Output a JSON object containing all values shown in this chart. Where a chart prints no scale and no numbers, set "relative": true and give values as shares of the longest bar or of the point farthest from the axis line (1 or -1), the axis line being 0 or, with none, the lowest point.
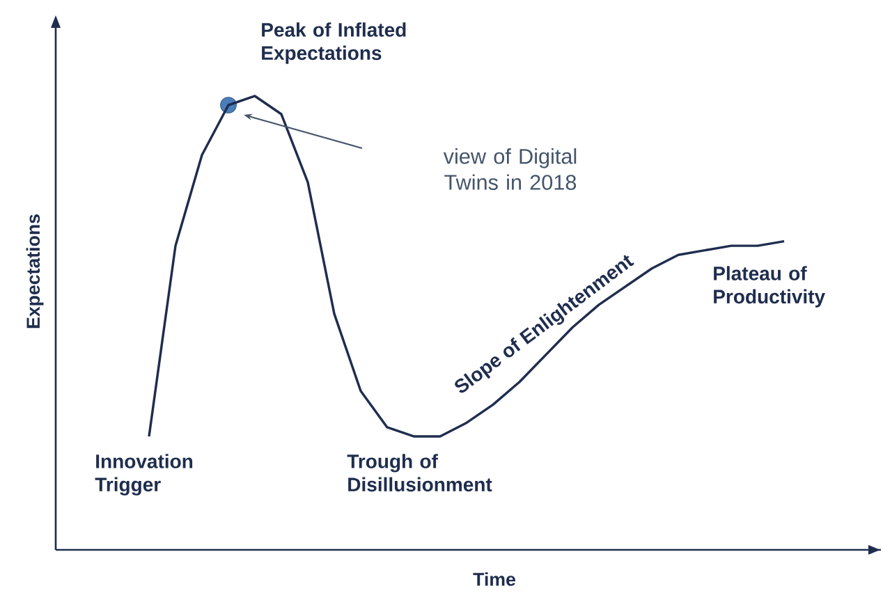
{
  "chart_data": {
    "type": "line",
    "relative": true,
    "xlabel": "Time",
    "ylabel": "Expectations",
    "categories": [
      null,
      null,
      null,
      null,
      null,
      null,
      null,
      null,
      null,
      null,
      null,
      null,
      null,
      null,
      null,
      null,
      null,
      null,
      null,
      null,
      null,
      null,
      null,
      null,
      null
    ],
    "series": [
      {
        "color": "#1f2d4e",
        "values": [
          0.25,
          0.67,
          0.87,
          0.98,
          1.0,
          0.96,
          0.81,
          0.52,
          0.35,
          0.27,
          0.25,
          0.25,
          0.28,
          0.32,
          0.37,
          0.43,
          0.49,
          0.54,
          0.58,
          0.62,
          0.65,
          0.66,
          0.67,
          0.67,
          0.68
        ]
      }
    ],
    "annotations": [
      "Peak of Inflated Expectations",
      "view of Digital Twins in 2018",
      "Innovation Trigger",
      "Trough of Disillusionment",
      "Slope of Enlightenment",
      "Plateau of Productivity"
    ]
  }
}
